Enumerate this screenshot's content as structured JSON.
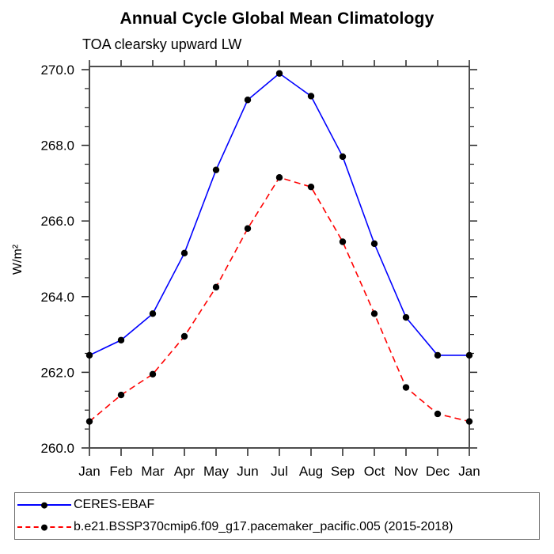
{
  "chart_data": {
    "type": "line",
    "title": "Annual Cycle Global Mean Climatology",
    "subtitle": "TOA clearsky upward LW",
    "ylabel": "W/m²",
    "xlabel": "",
    "categories": [
      "Jan",
      "Feb",
      "Mar",
      "Apr",
      "May",
      "Jun",
      "Jul",
      "Aug",
      "Sep",
      "Oct",
      "Nov",
      "Dec",
      "Jan"
    ],
    "ylim": [
      260.0,
      270.0
    ],
    "ytick_step": 2.0,
    "ytick_minor_step": 0.5,
    "ytick_labels": [
      "260.0",
      "262.0",
      "264.0",
      "266.0",
      "268.0",
      "270.0"
    ],
    "grid": false,
    "legend_position": "bottom",
    "marker_color": "#000000",
    "series": [
      {
        "name": "CERES-EBAF",
        "color": "#0000ff",
        "style": "solid",
        "values": [
          262.45,
          262.85,
          263.55,
          265.15,
          267.35,
          269.2,
          269.9,
          269.3,
          267.7,
          265.4,
          263.45,
          262.45,
          262.45
        ]
      },
      {
        "name": "b.e21.BSSP370cmip6.f09_g17.pacemaker_pacific.005 (2015-2018)",
        "color": "#ff0000",
        "style": "dashed",
        "values": [
          260.7,
          261.4,
          261.95,
          262.95,
          264.25,
          265.8,
          267.15,
          266.9,
          265.45,
          263.55,
          261.6,
          260.9,
          260.7
        ]
      }
    ]
  }
}
